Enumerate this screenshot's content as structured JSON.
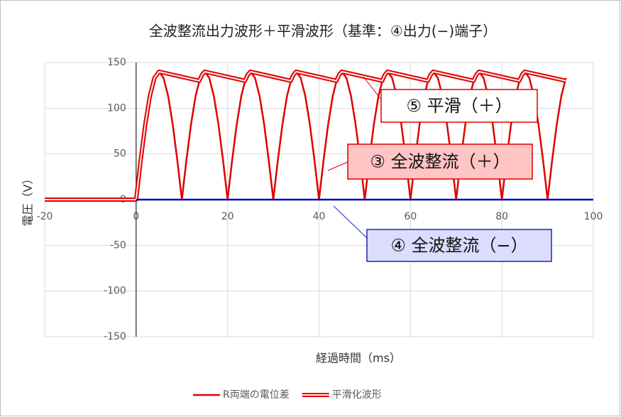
{
  "chart_data": {
    "type": "line",
    "title": "全波整流出力波形＋平滑波形（基準：④出力(−)端子）",
    "x_label": "経過時間（ms）",
    "y_label": "電圧（V）",
    "xlim": [
      -20,
      100
    ],
    "xticks": [
      -20,
      0,
      20,
      40,
      60,
      80,
      100
    ],
    "ylim": [
      -150,
      150
    ],
    "yticks": [
      -150,
      -100,
      -50,
      0,
      50,
      100,
      150
    ],
    "grid": true,
    "legend": "bottom",
    "series": [
      {
        "name": "R両端の電位差",
        "color": "#e00000",
        "style": "solid",
        "x": [
          -20,
          0,
          1,
          2,
          3,
          4,
          5,
          6,
          7,
          8,
          9,
          10,
          11,
          12,
          13,
          14,
          15,
          16,
          17,
          18,
          19,
          20,
          21,
          22,
          23,
          24,
          25,
          26,
          27,
          28,
          29,
          30,
          31,
          32,
          33,
          34,
          35,
          36,
          37,
          38,
          39,
          40,
          41,
          42,
          43,
          44,
          45,
          46,
          47,
          48,
          49,
          50,
          51,
          52,
          53,
          54,
          55,
          56,
          57,
          58,
          59,
          60,
          61,
          62,
          63,
          64,
          65,
          66,
          67,
          68,
          69,
          70,
          71,
          72,
          73,
          74,
          75,
          76,
          77,
          78,
          79,
          80,
          81,
          82,
          83,
          84,
          85,
          86,
          87,
          88,
          89,
          90,
          91,
          92,
          93,
          94
        ],
        "values": [
          0,
          0,
          43.3,
          82.3,
          113.3,
          133.1,
          140,
          133.1,
          113.3,
          82.3,
          43.3,
          0,
          43.3,
          82.3,
          113.3,
          133.1,
          140,
          133.1,
          113.3,
          82.3,
          43.3,
          0,
          43.3,
          82.3,
          113.3,
          133.1,
          140,
          133.1,
          113.3,
          82.3,
          43.3,
          0,
          43.3,
          82.3,
          113.3,
          133.1,
          140,
          133.1,
          113.3,
          82.3,
          43.3,
          0,
          43.3,
          82.3,
          113.3,
          133.1,
          140,
          133.1,
          113.3,
          82.3,
          43.3,
          0,
          43.3,
          82.3,
          113.3,
          133.1,
          140,
          133.1,
          113.3,
          82.3,
          43.3,
          0,
          43.3,
          82.3,
          113.3,
          133.1,
          140,
          133.1,
          113.3,
          82.3,
          43.3,
          0,
          43.3,
          82.3,
          113.3,
          133.1,
          140,
          133.1,
          113.3,
          82.3,
          43.3,
          0,
          43.3,
          82.3,
          113.3,
          133.1,
          140,
          133.1,
          113.3,
          82.3,
          43.3,
          0,
          43.3,
          82.3,
          113.3,
          133.1
        ]
      },
      {
        "name": "平滑化波形",
        "color": "#e00000",
        "style": "double",
        "x": [
          -20,
          0,
          1,
          2,
          3,
          4,
          5,
          13.8,
          14.4,
          15,
          23.8,
          24.4,
          25,
          33.8,
          34.4,
          35,
          43.8,
          44.4,
          45,
          53.8,
          54.4,
          55,
          63.8,
          64.4,
          65,
          73.8,
          74.4,
          75,
          83.8,
          84.4,
          85,
          94
        ],
        "values": [
          0,
          0,
          43.3,
          82.3,
          113.3,
          133.1,
          140,
          130,
          136.5,
          140,
          130,
          136.5,
          140,
          130,
          136.5,
          140,
          130,
          136.5,
          140,
          130,
          136.5,
          140,
          130,
          136.5,
          140,
          130,
          136.5,
          140,
          130,
          136.5,
          140,
          130
        ]
      },
      {
        "color": "#0000c0",
        "style": "solid",
        "x": [
          0,
          100
        ],
        "values": [
          0,
          0
        ]
      }
    ],
    "annotations": [
      {
        "text": "⑤ 平滑（＋）",
        "fill": "#ffffff",
        "border": "#e00000"
      },
      {
        "text": "③ 全波整流（＋）",
        "fill": "#ffc4c4",
        "border": "#e00000"
      },
      {
        "text": "④ 全波整流（−）",
        "fill": "#dcdcff",
        "border": "#2020c0"
      }
    ]
  }
}
